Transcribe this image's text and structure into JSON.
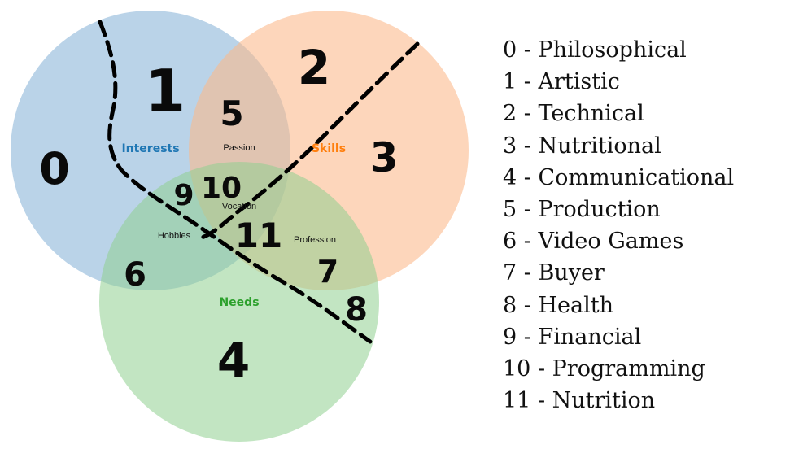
{
  "venn": {
    "sets": [
      {
        "id": "interests",
        "label": "Interests",
        "color": "#1f77b4",
        "fill": "#b9d3e8"
      },
      {
        "id": "skills",
        "label": "Skills",
        "color": "#ff7f0e",
        "fill": "#fdd4b2"
      },
      {
        "id": "needs",
        "label": "Needs",
        "color": "#2ca02c",
        "fill": "#bde2bd"
      }
    ],
    "regions": {
      "passion": "Passion",
      "vocation": "Vocation",
      "hobbies": "Hobbies",
      "profession": "Profession"
    }
  },
  "annotations": {
    "numbers": [
      "0",
      "1",
      "2",
      "3",
      "4",
      "5",
      "6",
      "7",
      "8",
      "9",
      "10",
      "11"
    ]
  },
  "legend": {
    "items": [
      "0 - Philosophical",
      "1 - Artistic",
      "2 - Technical",
      "3 - Nutritional",
      "4 - Communicational",
      "5 - Production",
      "6 - Video Games",
      "7 - Buyer",
      "8 - Health",
      "9 - Financial",
      "10 - Programming",
      "11 - Nutrition"
    ]
  }
}
